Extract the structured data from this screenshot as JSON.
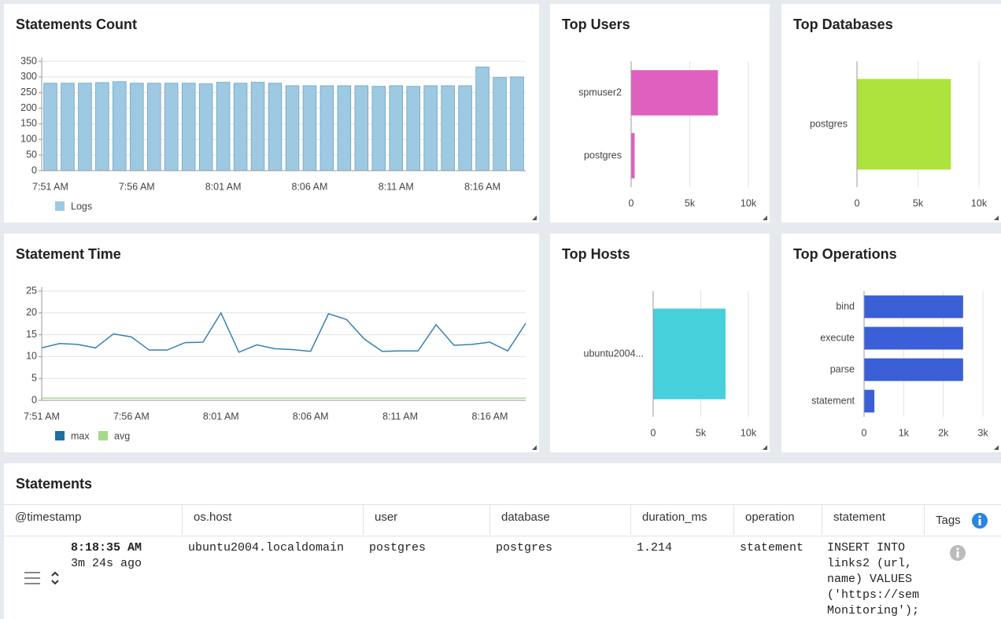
{
  "chart_data": [
    {
      "type": "bar",
      "title": "Statements Count",
      "categories": [
        "7:51 AM",
        null,
        null,
        null,
        null,
        "7:56 AM",
        null,
        null,
        null,
        null,
        "8:01 AM",
        null,
        null,
        null,
        null,
        "8:06 AM",
        null,
        null,
        null,
        null,
        "8:11 AM",
        null,
        null,
        null,
        null,
        "8:16 AM",
        null,
        null
      ],
      "series": [
        {
          "name": "Logs",
          "color": "#9ec9e2",
          "values": [
            280,
            280,
            280,
            282,
            285,
            280,
            280,
            280,
            280,
            278,
            283,
            280,
            283,
            280,
            272,
            272,
            272,
            272,
            272,
            270,
            272,
            270,
            272,
            272,
            272,
            332,
            298,
            300
          ]
        }
      ],
      "ylim": [
        0,
        350
      ],
      "yticks": [
        0,
        50,
        100,
        150,
        200,
        250,
        300,
        350
      ],
      "grid": true
    },
    {
      "type": "barh",
      "title": "Top Users",
      "categories": [
        "spmuser2",
        "postgres"
      ],
      "values": [
        7400,
        300
      ],
      "color": "#e060c0",
      "xlim": [
        0,
        10000
      ],
      "xticks": [
        0,
        {
          "value": 5000,
          "label": "5k"
        },
        {
          "value": 10000,
          "label": "10k"
        }
      ],
      "grid": true
    },
    {
      "type": "barh",
      "title": "Top Databases",
      "categories": [
        "postgres"
      ],
      "values": [
        7700
      ],
      "color": "#aee23c",
      "xlim": [
        0,
        10000
      ],
      "xticks": [
        0,
        {
          "value": 5000,
          "label": "5k"
        },
        {
          "value": 10000,
          "label": "10k"
        }
      ],
      "grid": true
    },
    {
      "type": "line",
      "title": "Statement Time",
      "categories": [
        "7:51 AM",
        null,
        null,
        null,
        null,
        "7:56 AM",
        null,
        null,
        null,
        null,
        "8:01 AM",
        null,
        null,
        null,
        null,
        "8:06 AM",
        null,
        null,
        null,
        null,
        "8:11 AM",
        null,
        null,
        null,
        null,
        "8:16 AM",
        null,
        null
      ],
      "series": [
        {
          "name": "max",
          "color": "#1f6fa0",
          "values": [
            12,
            13,
            12.8,
            12,
            15.2,
            14.5,
            11.5,
            11.5,
            13.2,
            13.3,
            20,
            11,
            12.7,
            11.8,
            11.6,
            11.2,
            19.8,
            18.5,
            14,
            11.2,
            11.3,
            11.3,
            17.3,
            12.6,
            12.8,
            13.3,
            11.3,
            17.6
          ]
        },
        {
          "name": "avg",
          "color": "#a6d98a",
          "values": [
            0.5,
            0.5,
            0.5,
            0.5,
            0.5,
            0.5,
            0.5,
            0.5,
            0.5,
            0.5,
            0.5,
            0.5,
            0.5,
            0.5,
            0.5,
            0.5,
            0.5,
            0.5,
            0.5,
            0.5,
            0.5,
            0.5,
            0.5,
            0.5,
            0.5,
            0.5,
            0.5,
            0.5
          ]
        }
      ],
      "ylim": [
        0,
        25
      ],
      "yticks": [
        0,
        5,
        10,
        15,
        20,
        25
      ],
      "grid": true
    },
    {
      "type": "barh",
      "title": "Top Hosts",
      "categories": [
        "ubuntu2004..."
      ],
      "values": [
        7600
      ],
      "color": "#45d0db",
      "xlim": [
        0,
        10000
      ],
      "xticks": [
        0,
        {
          "value": 5000,
          "label": "5k"
        },
        {
          "value": 10000,
          "label": "10k"
        }
      ],
      "grid": true
    },
    {
      "type": "barh",
      "title": "Top Operations",
      "categories": [
        "bind",
        "execute",
        "parse",
        "statement"
      ],
      "values": [
        2500,
        2500,
        2500,
        260
      ],
      "color": "#3a5fd6",
      "xlim": [
        0,
        3000
      ],
      "xticks": [
        0,
        {
          "value": 1000,
          "label": "1k"
        },
        {
          "value": 2000,
          "label": "2k"
        },
        {
          "value": 3000,
          "label": "3k"
        }
      ],
      "grid": true
    }
  ],
  "table": {
    "title": "Statements",
    "columns": [
      "@timestamp",
      "os.host",
      "user",
      "database",
      "duration_ms",
      "operation",
      "statement",
      "Tags"
    ],
    "rows": [
      {
        "timestamp": "8:18:35 AM",
        "age": "3m 24s ago",
        "host": "ubuntu2004.localdomain",
        "user": "postgres",
        "database": "postgres",
        "duration_ms": "1.214",
        "operation": "statement",
        "statement": [
          "INSERT INTO",
          "links2 (url,",
          "name) VALUES",
          "('https://sem",
          "Monitoring');"
        ]
      }
    ]
  }
}
